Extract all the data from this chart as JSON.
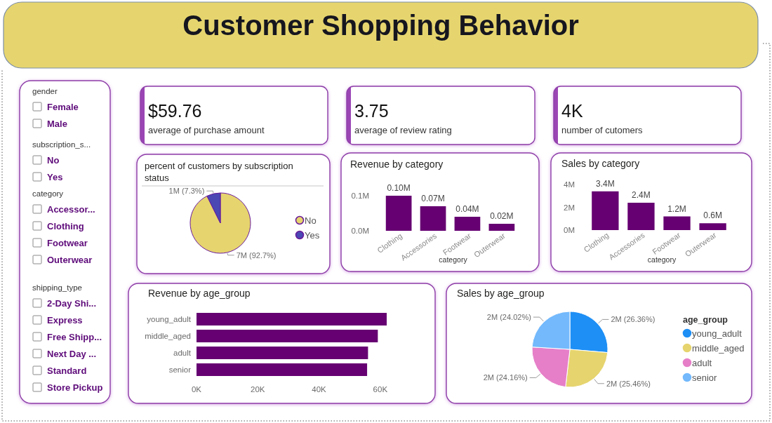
{
  "chart_data": [
    {
      "type": "other",
      "title": "Customer Shopping Behavior"
    },
    {
      "type": "other",
      "title": "gender",
      "annotations": [
        "Female",
        "Male"
      ]
    },
    {
      "type": "other",
      "title": "subscription_s...",
      "annotations": [
        "No",
        "Yes"
      ]
    },
    {
      "type": "other",
      "title": "category",
      "annotations": [
        "Accessor...",
        "Clothing",
        "Footwear",
        "Outerwear"
      ]
    },
    {
      "type": "other",
      "title": "shipping_type",
      "annotations": [
        "2-Day Shi...",
        "Express",
        "Free Shipp...",
        "Next Day ...",
        "Standard",
        "Store Pickup"
      ]
    },
    {
      "type": "other",
      "title": "average of purchase amount",
      "annotations": [
        "$59.76"
      ]
    },
    {
      "type": "other",
      "title": "average of review rating",
      "annotations": [
        "3.75"
      ]
    },
    {
      "type": "other",
      "title": "number of cutomers",
      "annotations": [
        "4K"
      ]
    },
    {
      "type": "pie",
      "title": "percent of customers by subscription status",
      "categories": [
        "No",
        "Yes"
      ],
      "values": [
        92.7,
        7.3
      ],
      "colors": [
        "#e6d46e",
        "#4b47b3"
      ],
      "value_labels": [
        "7M (92.7%)",
        "1M (7.3%)"
      ],
      "legend": "right"
    },
    {
      "type": "bar",
      "title": "Revenue by category",
      "xlabel": "category",
      "categories": [
        "Clothing",
        "Accessories",
        "Footwear",
        "Outerwear"
      ],
      "values": [
        0.1,
        0.07,
        0.04,
        0.02
      ],
      "color": "#660072",
      "value_labels": [
        "0.10M",
        "0.07M",
        "0.04M",
        "0.02M"
      ],
      "ylim": [
        0,
        0.1
      ],
      "yticks": [
        {
          "value": 0,
          "label": "0.0M"
        },
        {
          "value": 0.1,
          "label": "0.1M"
        }
      ]
    },
    {
      "type": "bar",
      "title": "Sales by category",
      "xlabel": "category",
      "categories": [
        "Clothing",
        "Accessories",
        "Footwear",
        "Outerwear"
      ],
      "values": [
        3.4,
        2.4,
        1.2,
        0.6
      ],
      "color": "#660072",
      "value_labels": [
        "3.4M",
        "2.4M",
        "1.2M",
        "0.6M"
      ],
      "ylim": [
        0,
        4
      ],
      "yticks": [
        {
          "value": 0,
          "label": "0M"
        },
        {
          "value": 2,
          "label": "2M"
        },
        {
          "value": 4,
          "label": "4M"
        }
      ]
    },
    {
      "type": "bar",
      "orientation": "horizontal",
      "title": "Revenue by age_group",
      "categories": [
        "young_adult",
        "middle_aged",
        "adult",
        "senior"
      ],
      "values": [
        62.1,
        59.2,
        56.0,
        55.7
      ],
      "color": "#660072",
      "xlim": [
        0,
        62.1
      ],
      "xticks": [
        {
          "value": 0,
          "label": "0K"
        },
        {
          "value": 20,
          "label": "20K"
        },
        {
          "value": 40,
          "label": "40K"
        },
        {
          "value": 60,
          "label": "60K"
        }
      ]
    },
    {
      "type": "pie",
      "title": "Sales by age_group",
      "legend_title": "age_group",
      "categories": [
        "young_adult",
        "middle_aged",
        "adult",
        "senior"
      ],
      "values": [
        26.36,
        25.46,
        24.16,
        24.02
      ],
      "colors": [
        "#1e8ff5",
        "#e6d46e",
        "#e67fc8",
        "#73b9fc"
      ],
      "value_labels": [
        "2M (26.36%)",
        "2M (25.46%)",
        "2M (24.16%)",
        "2M (24.02%)"
      ],
      "legend": "right"
    }
  ]
}
